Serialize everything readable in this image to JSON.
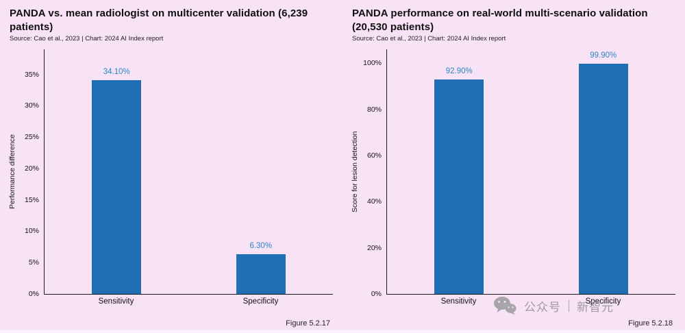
{
  "page": {
    "background": "#f8e2f6"
  },
  "watermark": {
    "icon": "wechat-icon",
    "text_account": "公众号",
    "text_name": "新智元",
    "color": "#8f8f8f"
  },
  "chart_data": [
    {
      "type": "bar",
      "title": "PANDA vs. mean radiologist on multicenter validation (6,239 patients)",
      "source": "Source: Cao et al., 2023 | Chart: 2024 AI Index report",
      "categories": [
        "Sensitivity",
        "Specificity"
      ],
      "values": [
        34.1,
        6.3
      ],
      "value_labels": [
        "34.10%",
        "6.30%"
      ],
      "xlabel": "",
      "ylabel": "Performance difference",
      "ylim": [
        0,
        39
      ],
      "ytick_values": [
        0,
        5,
        10,
        15,
        20,
        25,
        30,
        35
      ],
      "yticks": [
        "0%",
        "5%",
        "10%",
        "15%",
        "20%",
        "25%",
        "30%",
        "35%"
      ],
      "grid": false,
      "legend": "none",
      "figure": "Figure 5.2.17",
      "bar_color": "#1f6fb2",
      "label_color": "#2e86c4"
    },
    {
      "type": "bar",
      "title": "PANDA performance on real-world multi-scenario validation (20,530 patients)",
      "source": "Source: Cao et al., 2023 | Chart: 2024 AI Index report",
      "categories": [
        "Sensitivity",
        "Specificity"
      ],
      "values": [
        92.9,
        99.9
      ],
      "value_labels": [
        "92.90%",
        "99.90%"
      ],
      "xlabel": "",
      "ylabel": "Score for lesion detection",
      "ylim": [
        0,
        106
      ],
      "ytick_values": [
        0,
        20,
        40,
        60,
        80,
        100
      ],
      "yticks": [
        "0%",
        "20%",
        "40%",
        "60%",
        "80%",
        "100%"
      ],
      "grid": false,
      "legend": "none",
      "figure": "Figure 5.2.18",
      "bar_color": "#1f6fb2",
      "label_color": "#2e86c4"
    }
  ]
}
